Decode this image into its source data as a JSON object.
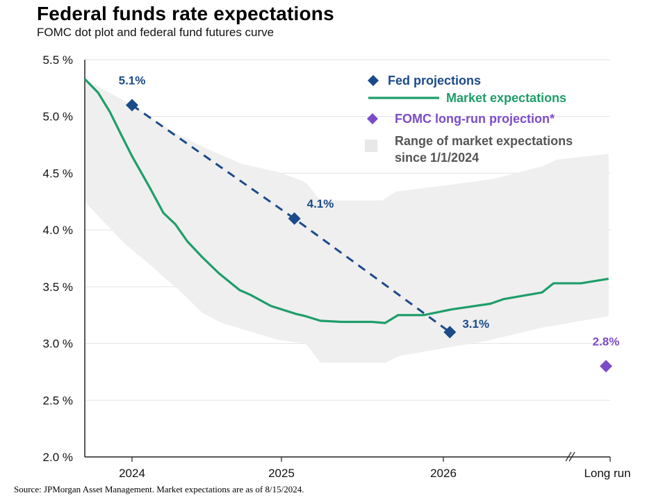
{
  "title": "Federal funds rate expectations",
  "subtitle": "FOMC dot plot and federal fund futures curve",
  "source": "Source: JPMorgan Asset Management.  Market expectations  are as of 8/15/2024.",
  "colors": {
    "fed": "#1b4a8a",
    "market": "#1e9e6a",
    "fomc": "#7b4cc8",
    "range": "#efefef",
    "grid": "#e2e2e2",
    "axis": "#222222"
  },
  "chart_data": {
    "type": "line",
    "title": "Federal funds rate expectations",
    "subtitle": "FOMC dot plot and federal fund futures curve",
    "xlabel": "",
    "ylabel": "",
    "ylim": [
      2.0,
      5.5
    ],
    "xlim": [
      2023.68,
      2027.03
    ],
    "grid": true,
    "legend_placement": "top-right",
    "y_ticks": [
      {
        "v": 2.0,
        "label": "2.0 %"
      },
      {
        "v": 2.5,
        "label": "2.5 %"
      },
      {
        "v": 3.0,
        "label": "3.0 %"
      },
      {
        "v": 3.5,
        "label": "3.5 %"
      },
      {
        "v": 4.0,
        "label": "4.0 %"
      },
      {
        "v": 4.5,
        "label": "4.5 %"
      },
      {
        "v": 5.0,
        "label": "5.0 %"
      },
      {
        "v": 5.5,
        "label": "5.5 %"
      }
    ],
    "x_ticks": [
      {
        "v": 2024,
        "label": "2024"
      },
      {
        "v": 2025,
        "label": "2025"
      },
      {
        "v": 2026,
        "label": "2026"
      },
      {
        "v": 2027.03,
        "label": "Long run"
      }
    ],
    "axis_break_at": 2026.79,
    "legend": [
      {
        "key": "fed",
        "label": "Fed projections",
        "marker": "diamond"
      },
      {
        "key": "market",
        "label": "Market expectations",
        "marker": "line"
      },
      {
        "key": "fomc",
        "label": "FOMC long-run projection*",
        "marker": "diamond"
      },
      {
        "key": "range",
        "label_lines": [
          "Range of market expectations",
          "since 1/1/2024"
        ],
        "marker": "square"
      }
    ],
    "series": [
      {
        "name": "Fed projections",
        "key": "fed",
        "style": "dashed",
        "points": [
          {
            "x": 2024.0,
            "y": 5.1,
            "label": "5.1%"
          },
          {
            "x": 2025.08,
            "y": 4.1,
            "label": "4.1%"
          },
          {
            "x": 2026.04,
            "y": 3.1,
            "label": "3.1%"
          }
        ]
      },
      {
        "name": "Market expectations",
        "key": "market",
        "points": [
          [
            2023.68,
            5.33
          ],
          [
            2023.77,
            5.21
          ],
          [
            2023.85,
            5.04
          ],
          [
            2023.93,
            4.83
          ],
          [
            2024.0,
            4.65
          ],
          [
            2024.12,
            4.37
          ],
          [
            2024.21,
            4.15
          ],
          [
            2024.29,
            4.05
          ],
          [
            2024.37,
            3.9
          ],
          [
            2024.47,
            3.76
          ],
          [
            2024.58,
            3.62
          ],
          [
            2024.72,
            3.47
          ],
          [
            2024.79,
            3.43
          ],
          [
            2024.93,
            3.33
          ],
          [
            2025.09,
            3.26
          ],
          [
            2025.15,
            3.24
          ],
          [
            2025.24,
            3.2
          ],
          [
            2025.37,
            3.19
          ],
          [
            2025.56,
            3.19
          ],
          [
            2025.64,
            3.18
          ],
          [
            2025.72,
            3.25
          ],
          [
            2025.88,
            3.25
          ],
          [
            2026.05,
            3.3
          ],
          [
            2026.29,
            3.35
          ],
          [
            2026.37,
            3.39
          ],
          [
            2026.61,
            3.45
          ],
          [
            2026.68,
            3.53
          ],
          [
            2026.85,
            3.53
          ],
          [
            2027.02,
            3.57
          ]
        ]
      },
      {
        "name": "FOMC long-run projection*",
        "key": "fomc",
        "points": [
          {
            "x": "Long run",
            "y": 2.8,
            "label": "2.8%"
          }
        ]
      },
      {
        "name": "Range of market expectations since 1/1/2024",
        "key": "range",
        "type": "area",
        "upper": [
          [
            2023.68,
            5.33
          ],
          [
            2024.0,
            5.1
          ],
          [
            2024.28,
            4.86
          ],
          [
            2024.51,
            4.71
          ],
          [
            2024.74,
            4.58
          ],
          [
            2024.98,
            4.51
          ],
          [
            2025.15,
            4.42
          ],
          [
            2025.24,
            4.26
          ],
          [
            2025.62,
            4.26
          ],
          [
            2025.71,
            4.34
          ],
          [
            2026.0,
            4.39
          ],
          [
            2026.31,
            4.45
          ],
          [
            2026.61,
            4.56
          ],
          [
            2026.7,
            4.62
          ],
          [
            2027.02,
            4.67
          ]
        ],
        "lower": [
          [
            2023.68,
            4.25
          ],
          [
            2023.81,
            4.07
          ],
          [
            2023.95,
            3.88
          ],
          [
            2024.14,
            3.67
          ],
          [
            2024.33,
            3.45
          ],
          [
            2024.47,
            3.27
          ],
          [
            2024.6,
            3.18
          ],
          [
            2024.98,
            3.03
          ],
          [
            2025.15,
            3.0
          ],
          [
            2025.24,
            2.83
          ],
          [
            2025.64,
            2.83
          ],
          [
            2025.73,
            2.89
          ],
          [
            2026.01,
            2.96
          ],
          [
            2026.26,
            3.02
          ],
          [
            2026.61,
            3.14
          ],
          [
            2027.02,
            3.24
          ]
        ]
      }
    ]
  }
}
